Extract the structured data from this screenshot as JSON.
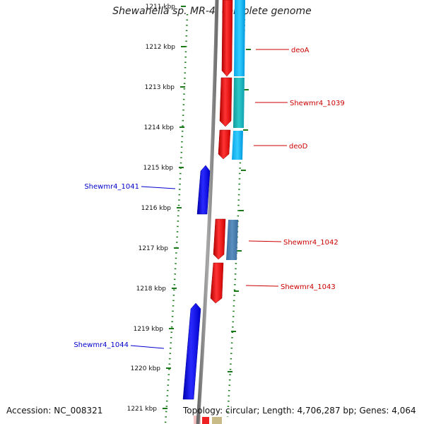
{
  "title": "Shewanella sp. MR-4, complete genome",
  "footer": {
    "accession": "Accession: NC_008321",
    "topology": "Topology: circular; Length: 4,706,287 bp; Genes: 4,064"
  },
  "ticks": [
    "1211 kbp",
    "1212 kbp",
    "1213 kbp",
    "1214 kbp",
    "1215 kbp",
    "1216 kbp",
    "1217 kbp",
    "1218 kbp",
    "1219 kbp",
    "1220 kbp",
    "1221 kbp"
  ],
  "genes": [
    {
      "label": "deoA",
      "strand": "forward",
      "color": "#cc0000"
    },
    {
      "label": "Shewmr4_1039",
      "strand": "forward",
      "color": "#cc0000"
    },
    {
      "label": "deoD",
      "strand": "forward",
      "color": "#cc0000"
    },
    {
      "label": "Shewmr4_1041",
      "strand": "reverse",
      "color": "#0000cc"
    },
    {
      "label": "Shewmr4_1042",
      "strand": "forward",
      "color": "#cc0000"
    },
    {
      "label": "Shewmr4_1043",
      "strand": "forward",
      "color": "#cc0000"
    },
    {
      "label": "Shewmr4_1044",
      "strand": "reverse",
      "color": "#0000cc"
    }
  ],
  "colors": {
    "forward_gene": "#ff0000",
    "reverse_gene": "#0000ff",
    "backbone": "#808080",
    "tick_dotted": "#1a7a1a",
    "label_forward": "#cc0000",
    "label_reverse": "#0000cc",
    "cog_cyan": "#00bfff",
    "cog_teal": "#1fb8b8",
    "cog_steel": "#4a7fb0"
  }
}
